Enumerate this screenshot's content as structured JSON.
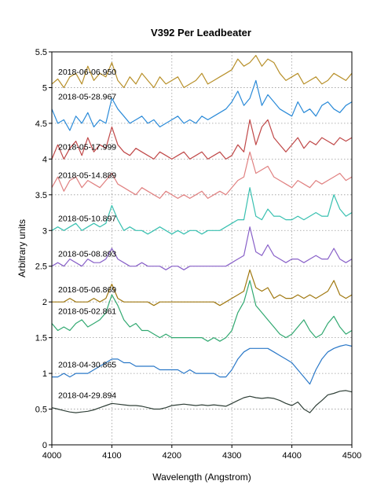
{
  "chart_data": {
    "type": "line",
    "title": "V392 Per   Leadbeater",
    "xlabel": "Wavelength (Angstrom)",
    "ylabel": "Arbitrary units",
    "xlim": [
      4000,
      4500
    ],
    "ylim": [
      0,
      5.5
    ],
    "xticks": [
      4000,
      4100,
      4200,
      4300,
      4400,
      4500
    ],
    "yticks": [
      0,
      0.5,
      1,
      1.5,
      2,
      2.5,
      3,
      3.5,
      4,
      4.5,
      5,
      5.5
    ],
    "grid": true,
    "x": [
      4000,
      4010,
      4020,
      4030,
      4040,
      4050,
      4060,
      4070,
      4080,
      4090,
      4100,
      4110,
      4120,
      4130,
      4140,
      4150,
      4160,
      4170,
      4180,
      4190,
      4200,
      4210,
      4220,
      4230,
      4240,
      4250,
      4260,
      4270,
      4280,
      4290,
      4300,
      4310,
      4320,
      4330,
      4340,
      4350,
      4360,
      4370,
      4380,
      4390,
      4400,
      4410,
      4420,
      4430,
      4440,
      4450,
      4460,
      4470,
      4480,
      4490,
      4500
    ],
    "series": [
      {
        "name": "2018-06-06.950",
        "color": "#b8902a",
        "values": [
          5.05,
          5.12,
          5.0,
          5.15,
          5.2,
          5.05,
          5.3,
          5.1,
          5.2,
          5.15,
          5.35,
          5.1,
          5.0,
          5.15,
          5.05,
          5.2,
          5.1,
          5.0,
          5.15,
          5.05,
          5.1,
          5.15,
          5.0,
          5.05,
          5.1,
          5.2,
          5.05,
          5.1,
          5.15,
          5.2,
          5.25,
          5.4,
          5.3,
          5.35,
          5.45,
          5.3,
          5.4,
          5.35,
          5.2,
          5.1,
          5.15,
          5.2,
          5.05,
          5.1,
          5.15,
          5.05,
          5.1,
          5.2,
          5.15,
          5.1,
          5.2
        ]
      },
      {
        "name": "2018-05-28.967",
        "color": "#2a8ad8",
        "values": [
          4.7,
          4.5,
          4.55,
          4.4,
          4.6,
          4.5,
          4.65,
          4.45,
          4.55,
          4.5,
          4.85,
          4.7,
          4.6,
          4.5,
          4.55,
          4.6,
          4.5,
          4.55,
          4.45,
          4.5,
          4.55,
          4.6,
          4.5,
          4.55,
          4.5,
          4.6,
          4.55,
          4.6,
          4.65,
          4.7,
          4.8,
          4.95,
          4.75,
          4.85,
          5.1,
          4.75,
          4.9,
          4.8,
          4.7,
          4.65,
          4.6,
          4.8,
          4.65,
          4.7,
          4.6,
          4.75,
          4.8,
          4.7,
          4.65,
          4.75,
          4.8
        ]
      },
      {
        "name": "2018-05-17.999",
        "color": "#c04848",
        "values": [
          4.0,
          4.2,
          4.0,
          4.15,
          4.25,
          4.05,
          4.3,
          4.1,
          4.2,
          4.15,
          4.45,
          4.2,
          4.1,
          4.05,
          4.15,
          4.1,
          4.05,
          4.0,
          4.1,
          4.05,
          4.0,
          4.05,
          4.1,
          4.0,
          4.05,
          4.1,
          4.0,
          4.05,
          4.1,
          4.0,
          4.05,
          4.2,
          4.1,
          4.55,
          4.2,
          4.45,
          4.55,
          4.3,
          4.2,
          4.1,
          4.2,
          4.3,
          4.15,
          4.25,
          4.2,
          4.3,
          4.25,
          4.2,
          4.3,
          4.25,
          4.3
        ]
      },
      {
        "name": "2018-05-14.889",
        "color": "#e08080",
        "values": [
          3.6,
          3.75,
          3.55,
          3.7,
          3.75,
          3.6,
          3.7,
          3.65,
          3.6,
          3.7,
          3.8,
          3.65,
          3.6,
          3.55,
          3.5,
          3.6,
          3.55,
          3.5,
          3.45,
          3.55,
          3.5,
          3.45,
          3.5,
          3.45,
          3.5,
          3.55,
          3.45,
          3.5,
          3.55,
          3.5,
          3.6,
          3.7,
          3.75,
          4.1,
          3.8,
          3.85,
          3.9,
          3.75,
          3.7,
          3.65,
          3.6,
          3.7,
          3.65,
          3.6,
          3.7,
          3.65,
          3.7,
          3.75,
          3.8,
          3.7,
          3.75
        ]
      },
      {
        "name": "2018-05-10.897",
        "color": "#38c0b0",
        "values": [
          3.0,
          3.05,
          3.0,
          3.05,
          3.1,
          3.0,
          3.05,
          3.1,
          3.05,
          3.1,
          3.35,
          3.15,
          3.0,
          3.05,
          3.0,
          3.0,
          2.95,
          3.0,
          3.05,
          3.0,
          2.95,
          3.0,
          2.95,
          3.0,
          3.0,
          2.95,
          3.0,
          3.0,
          3.0,
          3.05,
          3.1,
          3.15,
          3.15,
          3.6,
          3.2,
          3.15,
          3.3,
          3.2,
          3.2,
          3.15,
          3.15,
          3.2,
          3.15,
          3.2,
          3.25,
          3.2,
          3.2,
          3.5,
          3.3,
          3.2,
          3.25
        ]
      },
      {
        "name": "2018-05-08.893",
        "color": "#8860c8",
        "values": [
          2.5,
          2.55,
          2.5,
          2.6,
          2.55,
          2.5,
          2.6,
          2.55,
          2.55,
          2.6,
          2.75,
          2.6,
          2.55,
          2.5,
          2.5,
          2.55,
          2.5,
          2.5,
          2.5,
          2.45,
          2.5,
          2.5,
          2.45,
          2.5,
          2.5,
          2.5,
          2.5,
          2.5,
          2.5,
          2.5,
          2.55,
          2.6,
          2.65,
          3.05,
          2.7,
          2.65,
          2.8,
          2.65,
          2.6,
          2.55,
          2.6,
          2.6,
          2.55,
          2.6,
          2.65,
          2.6,
          2.6,
          2.75,
          2.6,
          2.55,
          2.6
        ]
      },
      {
        "name": "2018-05-06.869",
        "color": "#a07810",
        "values": [
          2.0,
          2.0,
          2.0,
          2.05,
          2.0,
          2.0,
          2.0,
          2.05,
          2.0,
          2.05,
          2.25,
          2.05,
          2.0,
          2.0,
          2.0,
          2.0,
          2.0,
          1.95,
          2.0,
          2.0,
          2.0,
          2.0,
          2.0,
          2.0,
          2.0,
          2.0,
          2.0,
          2.0,
          1.95,
          2.0,
          2.05,
          2.1,
          2.15,
          2.45,
          2.2,
          2.15,
          2.2,
          2.05,
          2.1,
          2.05,
          2.05,
          2.1,
          2.05,
          2.1,
          2.05,
          2.1,
          2.15,
          2.3,
          2.1,
          2.05,
          2.1
        ]
      },
      {
        "name": "2018-05-02.861",
        "color": "#30a870",
        "values": [
          1.7,
          1.6,
          1.65,
          1.6,
          1.7,
          1.75,
          1.65,
          1.7,
          1.75,
          1.85,
          2.1,
          1.95,
          1.75,
          1.65,
          1.7,
          1.6,
          1.6,
          1.55,
          1.5,
          1.55,
          1.5,
          1.5,
          1.5,
          1.5,
          1.5,
          1.5,
          1.45,
          1.5,
          1.45,
          1.5,
          1.6,
          1.85,
          2.0,
          2.3,
          1.95,
          1.85,
          1.75,
          1.65,
          1.55,
          1.5,
          1.55,
          1.65,
          1.75,
          1.6,
          1.5,
          1.55,
          1.7,
          1.8,
          1.65,
          1.55,
          1.6
        ]
      },
      {
        "name": "2018-04-30.865",
        "color": "#2a78c8",
        "values": [
          0.95,
          0.95,
          1.0,
          0.95,
          1.0,
          1.0,
          1.0,
          1.05,
          1.1,
          1.15,
          1.2,
          1.2,
          1.15,
          1.15,
          1.1,
          1.1,
          1.1,
          1.1,
          1.05,
          1.05,
          1.05,
          1.05,
          1.0,
          1.05,
          1.0,
          1.0,
          1.0,
          1.0,
          0.95,
          0.95,
          1.05,
          1.2,
          1.3,
          1.35,
          1.35,
          1.35,
          1.35,
          1.3,
          1.25,
          1.2,
          1.15,
          1.05,
          0.95,
          0.85,
          1.05,
          1.2,
          1.3,
          1.35,
          1.38,
          1.4,
          1.38
        ]
      },
      {
        "name": "2018-04-29.894",
        "color": "#304038",
        "values": [
          0.52,
          0.5,
          0.48,
          0.46,
          0.45,
          0.46,
          0.47,
          0.49,
          0.52,
          0.55,
          0.58,
          0.57,
          0.56,
          0.55,
          0.55,
          0.54,
          0.52,
          0.5,
          0.5,
          0.52,
          0.55,
          0.56,
          0.57,
          0.56,
          0.55,
          0.56,
          0.55,
          0.56,
          0.55,
          0.54,
          0.58,
          0.62,
          0.66,
          0.68,
          0.66,
          0.65,
          0.66,
          0.65,
          0.62,
          0.58,
          0.55,
          0.6,
          0.5,
          0.45,
          0.55,
          0.62,
          0.7,
          0.72,
          0.75,
          0.76,
          0.74
        ]
      }
    ]
  }
}
